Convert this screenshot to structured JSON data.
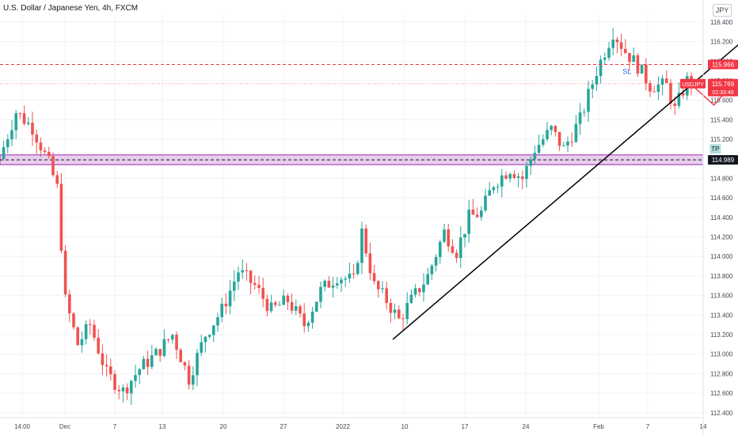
{
  "header": {
    "title": "U.S. Dollar / Japanese Yen, 4h, FXCM",
    "currency_badge": "JPY"
  },
  "colors": {
    "up": "#26a69a",
    "down": "#ef5350",
    "grid": "#f0f3fa",
    "trendline": "#000000",
    "sl_line": "#f23645",
    "tp_zone": "#e1bee7",
    "tp_zone_border": "#9c27b0",
    "arrow": "#f23645",
    "tp_label_bg": "#b2dfdb"
  },
  "chart_data": {
    "type": "candlestick",
    "ylim": [
      112.35,
      116.48
    ],
    "yticks": [
      "112.400",
      "112.600",
      "112.800",
      "113.000",
      "113.200",
      "113.400",
      "113.600",
      "113.800",
      "114.000",
      "114.200",
      "114.400",
      "114.600",
      "114.800",
      "115.000",
      "115.200",
      "115.400",
      "115.600",
      "115.800",
      "116.000",
      "116.200",
      "116.400"
    ],
    "xticks": [
      "14:00",
      "Dec",
      "7",
      "13",
      "20",
      "27",
      "2022",
      "10",
      "17",
      "24",
      "Feb",
      "7",
      "14"
    ],
    "grid": true,
    "path_points": [
      [
        115.0,
        0
      ],
      [
        115.48,
        4
      ],
      [
        115.32,
        8
      ],
      [
        114.95,
        12
      ],
      [
        114.7,
        14
      ],
      [
        113.55,
        16
      ],
      [
        113.1,
        19
      ],
      [
        113.3,
        22
      ],
      [
        112.8,
        26
      ],
      [
        112.62,
        30
      ],
      [
        112.85,
        34
      ],
      [
        113.0,
        38
      ],
      [
        113.2,
        42
      ],
      [
        112.75,
        46
      ],
      [
        113.2,
        50
      ],
      [
        113.45,
        54
      ],
      [
        113.85,
        58
      ],
      [
        113.7,
        62
      ],
      [
        113.45,
        66
      ],
      [
        113.55,
        70
      ],
      [
        113.3,
        74
      ],
      [
        113.65,
        78
      ],
      [
        113.8,
        82
      ],
      [
        113.75,
        86
      ],
      [
        114.25,
        88
      ],
      [
        113.7,
        91
      ],
      [
        113.55,
        94
      ],
      [
        113.35,
        97
      ],
      [
        113.55,
        100
      ],
      [
        113.8,
        104
      ],
      [
        114.25,
        108
      ],
      [
        114.05,
        111
      ],
      [
        114.4,
        114
      ],
      [
        114.45,
        117
      ],
      [
        114.75,
        120
      ],
      [
        114.9,
        124
      ],
      [
        114.8,
        127
      ],
      [
        115.1,
        130
      ],
      [
        115.3,
        134
      ],
      [
        115.1,
        137
      ],
      [
        115.4,
        141
      ],
      [
        115.9,
        145
      ],
      [
        116.3,
        149
      ],
      [
        116.1,
        152
      ],
      [
        115.95,
        155
      ],
      [
        115.75,
        158
      ],
      [
        115.75,
        162
      ],
      [
        115.5,
        164
      ],
      [
        115.8,
        167
      ]
    ],
    "trendline": {
      "start": [
        113.15,
        95
      ],
      "end": [
        116.35,
        184
      ]
    },
    "sl_level": 115.966,
    "current_price": 115.769,
    "tp_zone": [
      114.94,
      115.04
    ],
    "tp_level": 114.989,
    "projection": [
      [
        115.78,
        167
      ],
      [
        115.55,
        173
      ],
      [
        115.78,
        178
      ],
      [
        115.0,
        190
      ]
    ],
    "labels": {
      "sl": "SL",
      "tp": "TP",
      "symbol": "USDJPY",
      "sl_price": "115.966",
      "current_price": "115.769",
      "countdown": "02:33:49",
      "tp_price": "114.989"
    }
  }
}
